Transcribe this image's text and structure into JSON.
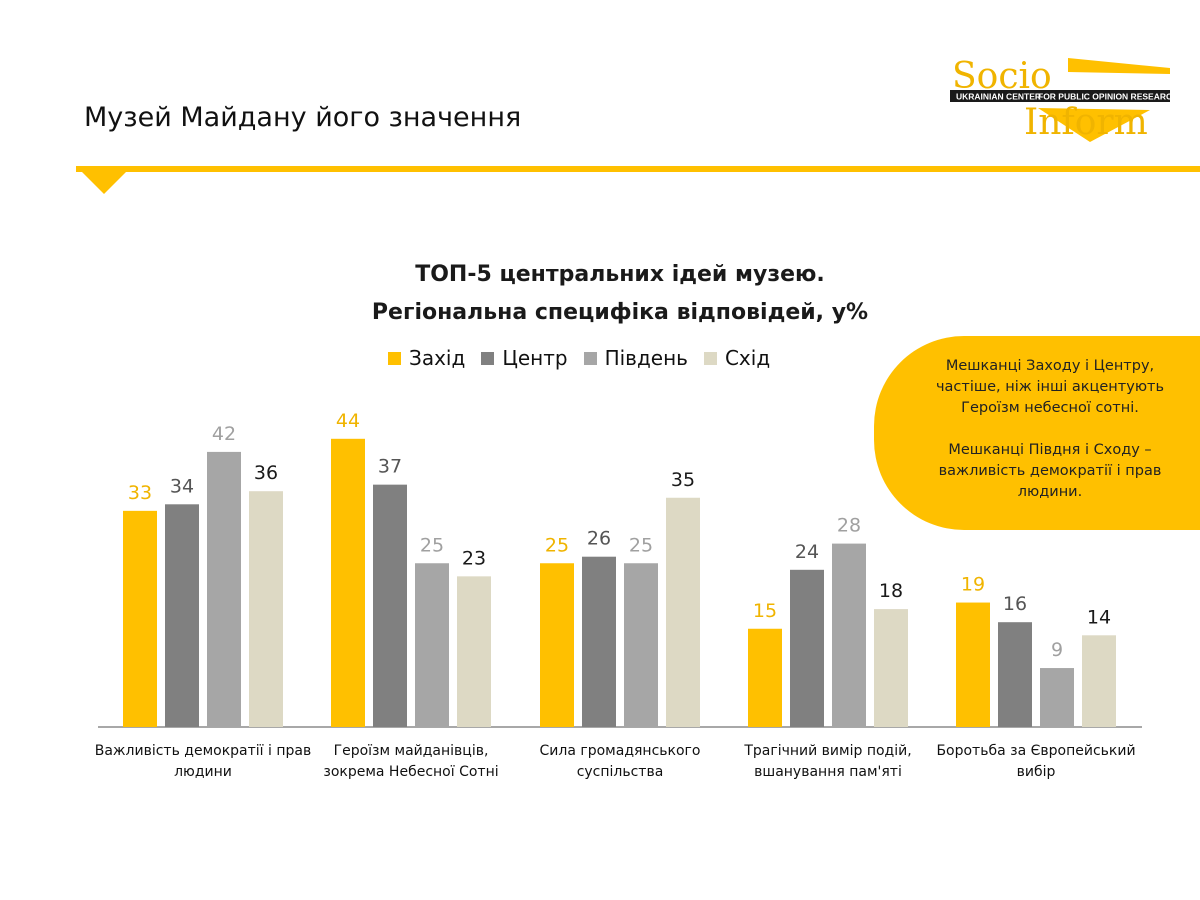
{
  "header": {
    "title": "Музей Майдану його значення",
    "accent_color": "#FFC000"
  },
  "logo": {
    "word1": "Socio",
    "word2": "Inform",
    "band_left": "UKRAINIAN CENTER",
    "band_right": "FOR PUBLIC OPINION RESEARCH"
  },
  "callout": {
    "text1": "Мешканці Заходу і Центру, частіше, ніж інші акцентують Героїзм небесної сотні.",
    "text2": "Мешканці Півдня і Сходу – важливість демократії і прав людини."
  },
  "chart_data": {
    "type": "bar",
    "title_line1": "ТОП-5 центральних ідей музею.",
    "title_line2": "Регіональна специфіка відповідей, у%",
    "categories": [
      [
        "Важливість демократії і прав",
        "людини"
      ],
      [
        "Героїзм майданівців,",
        "зокрема Небесної Сотні"
      ],
      [
        "Сила громадянського",
        "суспільства"
      ],
      [
        "Трагічний вимір подій,",
        "вшанування пам'яті"
      ],
      [
        "Боротьба за Європейський",
        "вибір"
      ]
    ],
    "series": [
      {
        "name": "Захід",
        "color": "#FFC000",
        "label_color": "#F0B400",
        "values": [
          33,
          44,
          25,
          15,
          19
        ]
      },
      {
        "name": "Центр",
        "color": "#808080",
        "label_color": "#555555",
        "values": [
          34,
          37,
          26,
          24,
          16
        ]
      },
      {
        "name": "Південь",
        "color": "#A6A6A6",
        "label_color": "#A0A0A0",
        "values": [
          42,
          25,
          25,
          28,
          9
        ]
      },
      {
        "name": "Схід",
        "color": "#DDD9C4",
        "label_color": "#1a1a1a",
        "values": [
          36,
          23,
          35,
          18,
          14
        ]
      }
    ],
    "ylim": [
      0,
      50
    ],
    "grid": false,
    "legend_position": "top"
  }
}
